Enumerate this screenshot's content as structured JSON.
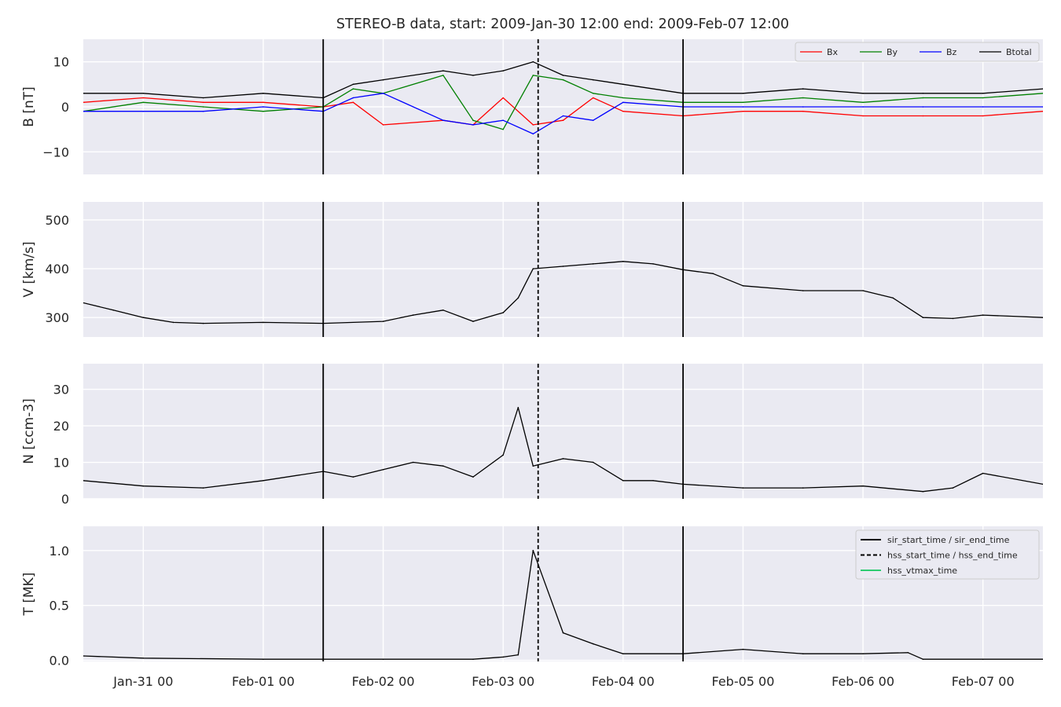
{
  "title": "STEREO-B data, start: 2009-Jan-30 12:00  end: 2009-Feb-07 12:00",
  "colors": {
    "Bx": "#ff0000",
    "By": "#008000",
    "Bz": "#0000ff",
    "Btotal": "#000000",
    "V": "#000000",
    "N": "#000000",
    "T": "#000000",
    "hss_vtmax": "#2ecc71",
    "bg": "#eaeaf2",
    "grid": "#ffffff"
  },
  "x_axis": {
    "start": "2009-01-30 12:00",
    "end": "2009-02-07 12:00",
    "ticks": [
      {
        "at": "2009-01-31 00:00",
        "label": "Jan-31 00"
      },
      {
        "at": "2009-02-01 00:00",
        "label": "Feb-01 00"
      },
      {
        "at": "2009-02-02 00:00",
        "label": "Feb-02 00"
      },
      {
        "at": "2009-02-03 00:00",
        "label": "Feb-03 00"
      },
      {
        "at": "2009-02-04 00:00",
        "label": "Feb-04 00"
      },
      {
        "at": "2009-02-05 00:00",
        "label": "Feb-05 00"
      },
      {
        "at": "2009-02-06 00:00",
        "label": "Feb-06 00"
      },
      {
        "at": "2009-02-07 00:00",
        "label": "Feb-07 00"
      }
    ]
  },
  "event_lines": {
    "sir_start_time": "2009-02-01 12:00",
    "sir_end_time": "2009-02-04 12:00",
    "hss_start_time": "2009-02-03 07:00"
  },
  "panels": [
    {
      "key": "B",
      "ylabel": "B [nT]",
      "ylim": [
        -15,
        15
      ],
      "yticks": [
        -10,
        0,
        10
      ],
      "ytick_labels": [
        "−10",
        "0",
        "10"
      ]
    },
    {
      "key": "V",
      "ylabel": "V [km/s]",
      "ylim": [
        260,
        537
      ],
      "yticks": [
        300,
        400,
        500
      ],
      "ytick_labels": [
        "300",
        "400",
        "500"
      ]
    },
    {
      "key": "N",
      "ylabel": "N [ccm-3]",
      "ylim": [
        0,
        37
      ],
      "yticks": [
        0,
        10,
        20,
        30
      ],
      "ytick_labels": [
        "0",
        "10",
        "20",
        "30"
      ]
    },
    {
      "key": "T",
      "ylabel": "T [MK]",
      "ylim": [
        -0.01,
        1.22
      ],
      "yticks": [
        0,
        0.5,
        1.0
      ],
      "ytick_labels": [
        "0.0",
        "0.5",
        "1.0"
      ]
    }
  ],
  "legend_b": [
    "Bx",
    "By",
    "Bz",
    "Btotal"
  ],
  "legend_events": [
    "sir_start_time / sir_end_time",
    "hss_start_time / hss_end_time",
    "hss_vtmax_time"
  ],
  "chart_data": [
    {
      "type": "line",
      "ylabel": "B [nT]",
      "ylim": [
        -15,
        15
      ],
      "series": [
        {
          "name": "Bx",
          "x": [
            "2009-01-30 12:00",
            "2009-01-31 00:00",
            "2009-01-31 12:00",
            "2009-02-01 00:00",
            "2009-02-01 12:00",
            "2009-02-01 18:00",
            "2009-02-02 00:00",
            "2009-02-02 12:00",
            "2009-02-02 18:00",
            "2009-02-03 00:00",
            "2009-02-03 06:00",
            "2009-02-03 12:00",
            "2009-02-03 18:00",
            "2009-02-04 00:00",
            "2009-02-04 12:00",
            "2009-02-05 00:00",
            "2009-02-05 12:00",
            "2009-02-06 00:00",
            "2009-02-06 12:00",
            "2009-02-07 00:00",
            "2009-02-07 12:00"
          ],
          "y": [
            1,
            2,
            1,
            1,
            0,
            1,
            -4,
            -3,
            -4,
            2,
            -4,
            -3,
            2,
            -1,
            -2,
            -1,
            -1,
            -2,
            -2,
            -2,
            -1
          ]
        },
        {
          "name": "By",
          "x": [
            "2009-01-30 12:00",
            "2009-01-31 00:00",
            "2009-01-31 12:00",
            "2009-02-01 00:00",
            "2009-02-01 12:00",
            "2009-02-01 18:00",
            "2009-02-02 00:00",
            "2009-02-02 12:00",
            "2009-02-02 18:00",
            "2009-02-03 00:00",
            "2009-02-03 06:00",
            "2009-02-03 12:00",
            "2009-02-03 18:00",
            "2009-02-04 00:00",
            "2009-02-04 12:00",
            "2009-02-05 00:00",
            "2009-02-05 12:00",
            "2009-02-06 00:00",
            "2009-02-06 12:00",
            "2009-02-07 00:00",
            "2009-02-07 12:00"
          ],
          "y": [
            -1,
            1,
            0,
            -1,
            0,
            4,
            3,
            7,
            -3,
            -5,
            7,
            6,
            3,
            2,
            1,
            1,
            2,
            1,
            2,
            2,
            3
          ]
        },
        {
          "name": "Bz",
          "x": [
            "2009-01-30 12:00",
            "2009-01-31 00:00",
            "2009-01-31 12:00",
            "2009-02-01 00:00",
            "2009-02-01 12:00",
            "2009-02-01 18:00",
            "2009-02-02 00:00",
            "2009-02-02 12:00",
            "2009-02-02 18:00",
            "2009-02-03 00:00",
            "2009-02-03 06:00",
            "2009-02-03 12:00",
            "2009-02-03 18:00",
            "2009-02-04 00:00",
            "2009-02-04 12:00",
            "2009-02-05 00:00",
            "2009-02-05 12:00",
            "2009-02-06 00:00",
            "2009-02-06 12:00",
            "2009-02-07 00:00",
            "2009-02-07 12:00"
          ],
          "y": [
            -1,
            -1,
            -1,
            0,
            -1,
            2,
            3,
            -3,
            -4,
            -3,
            -6,
            -2,
            -3,
            1,
            0,
            0,
            0,
            0,
            0,
            0,
            0
          ]
        },
        {
          "name": "Btotal",
          "x": [
            "2009-01-30 12:00",
            "2009-01-31 00:00",
            "2009-01-31 12:00",
            "2009-02-01 00:00",
            "2009-02-01 12:00",
            "2009-02-01 18:00",
            "2009-02-02 00:00",
            "2009-02-02 12:00",
            "2009-02-02 18:00",
            "2009-02-03 00:00",
            "2009-02-03 06:00",
            "2009-02-03 12:00",
            "2009-02-03 18:00",
            "2009-02-04 00:00",
            "2009-02-04 12:00",
            "2009-02-05 00:00",
            "2009-02-05 12:00",
            "2009-02-06 00:00",
            "2009-02-06 12:00",
            "2009-02-07 00:00",
            "2009-02-07 12:00"
          ],
          "y": [
            3,
            3,
            2,
            3,
            2,
            5,
            6,
            8,
            7,
            8,
            10,
            7,
            6,
            5,
            3,
            3,
            4,
            3,
            3,
            3,
            4
          ]
        }
      ]
    },
    {
      "type": "line",
      "ylabel": "V [km/s]",
      "ylim": [
        260,
        537
      ],
      "series": [
        {
          "x": [
            "2009-01-30 12:00",
            "2009-01-30 18:00",
            "2009-01-31 00:00",
            "2009-01-31 06:00",
            "2009-01-31 12:00",
            "2009-02-01 00:00",
            "2009-02-01 12:00",
            "2009-02-02 00:00",
            "2009-02-02 06:00",
            "2009-02-02 12:00",
            "2009-02-02 18:00",
            "2009-02-03 00:00",
            "2009-02-03 03:00",
            "2009-02-03 06:00",
            "2009-02-03 12:00",
            "2009-02-03 18:00",
            "2009-02-04 00:00",
            "2009-02-04 06:00",
            "2009-02-04 12:00",
            "2009-02-04 18:00",
            "2009-02-05 00:00",
            "2009-02-05 12:00",
            "2009-02-06 00:00",
            "2009-02-06 06:00",
            "2009-02-06 12:00",
            "2009-02-06 18:00",
            "2009-02-07 00:00",
            "2009-02-07 12:00"
          ],
          "y": [
            330,
            315,
            300,
            290,
            288,
            290,
            288,
            292,
            305,
            315,
            292,
            310,
            340,
            400,
            405,
            410,
            415,
            410,
            398,
            390,
            365,
            355,
            355,
            340,
            300,
            298,
            305,
            300
          ]
        }
      ]
    },
    {
      "type": "line",
      "ylabel": "N [ccm-3]",
      "ylim": [
        0,
        37
      ],
      "series": [
        {
          "x": [
            "2009-01-30 12:00",
            "2009-01-31 00:00",
            "2009-01-31 12:00",
            "2009-02-01 00:00",
            "2009-02-01 12:00",
            "2009-02-01 18:00",
            "2009-02-02 00:00",
            "2009-02-02 06:00",
            "2009-02-02 12:00",
            "2009-02-02 18:00",
            "2009-02-03 00:00",
            "2009-02-03 03:00",
            "2009-02-03 06:00",
            "2009-02-03 12:00",
            "2009-02-03 18:00",
            "2009-02-04 00:00",
            "2009-02-04 06:00",
            "2009-02-04 12:00",
            "2009-02-05 00:00",
            "2009-02-05 12:00",
            "2009-02-06 00:00",
            "2009-02-06 12:00",
            "2009-02-06 18:00",
            "2009-02-07 00:00",
            "2009-02-07 12:00"
          ],
          "y": [
            5,
            3.5,
            3,
            5,
            7.5,
            6,
            8,
            10,
            9,
            6,
            12,
            25,
            9,
            11,
            10,
            5,
            5,
            4,
            3,
            3,
            3.5,
            2,
            3,
            7,
            4
          ]
        }
      ]
    },
    {
      "type": "line",
      "ylabel": "T [MK]",
      "ylim": [
        -0.01,
        1.22
      ],
      "series": [
        {
          "x": [
            "2009-01-30 12:00",
            "2009-01-31 00:00",
            "2009-02-01 00:00",
            "2009-02-02 00:00",
            "2009-02-02 18:00",
            "2009-02-03 00:00",
            "2009-02-03 03:00",
            "2009-02-03 06:00",
            "2009-02-03 12:00",
            "2009-02-03 18:00",
            "2009-02-04 00:00",
            "2009-02-04 12:00",
            "2009-02-05 00:00",
            "2009-02-05 12:00",
            "2009-02-06 00:00",
            "2009-02-06 09:00",
            "2009-02-06 12:00",
            "2009-02-07 00:00",
            "2009-02-07 12:00"
          ],
          "y": [
            0.04,
            0.02,
            0.01,
            0.01,
            0.01,
            0.03,
            0.05,
            1.0,
            0.25,
            0.15,
            0.06,
            0.06,
            0.1,
            0.06,
            0.06,
            0.07,
            0.01,
            0.01,
            0.01
          ]
        }
      ]
    }
  ]
}
